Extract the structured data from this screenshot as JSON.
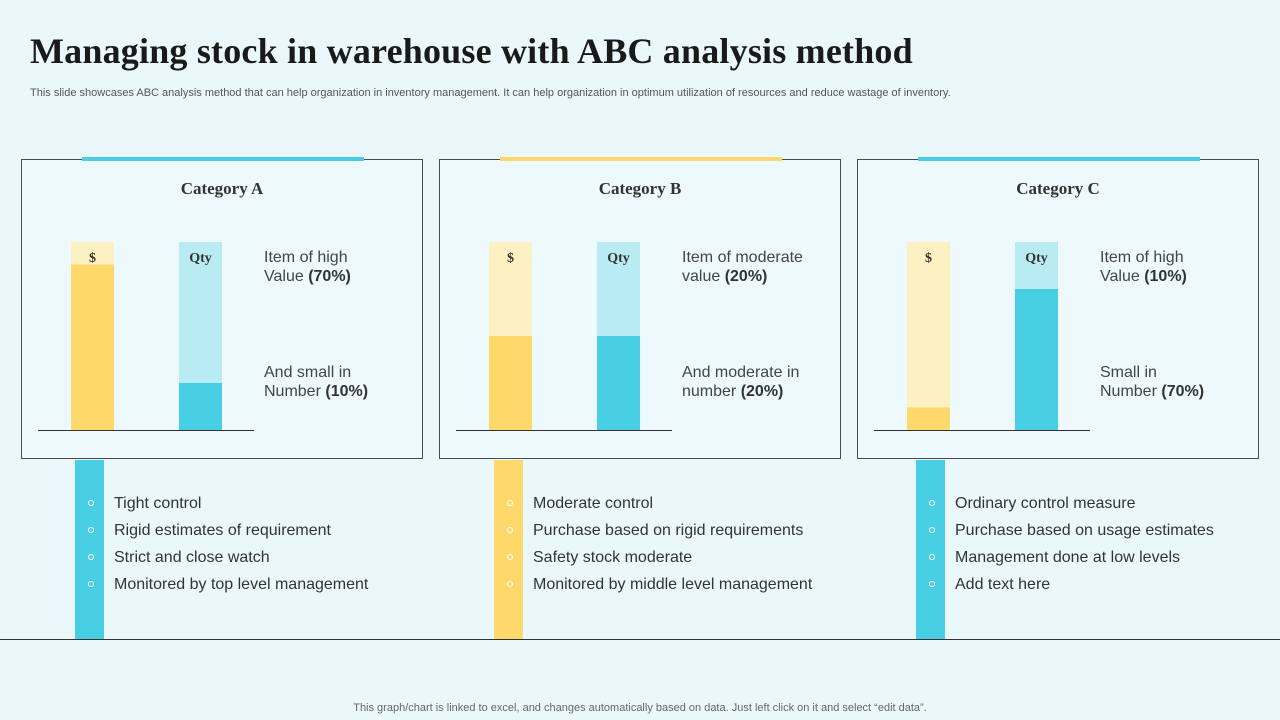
{
  "title": "Managing stock in warehouse with ABC analysis method",
  "subtitle": "This slide showcases ABC analysis method that can help organization in inventory management. It can help organization in optimum utilization of resources and reduce wastage of inventory.",
  "footer": "This graph/chart is linked to excel,  and changes automatically based on data. Just left click on it and select “edit data”.",
  "colors": {
    "dollar_fill": "#fcd96a",
    "dollar_bg": "#fdf0c2",
    "qty_fill": "#48cfe3",
    "qty_bg": "#b9ebf3",
    "accent_blue": "#48cfe3",
    "accent_yellow": "#fcd96a"
  },
  "chart_data": [
    {
      "type": "bar",
      "title": "Category A",
      "categories": [
        "$",
        "Qty"
      ],
      "values": [
        88,
        25
      ],
      "ylim": [
        0,
        100
      ],
      "accent": "blue",
      "desc_top": {
        "text": "Item  of high",
        "text2": "Value ",
        "bold": "(70%)"
      },
      "desc_bottom": {
        "text": "And small in",
        "text2": "Number ",
        "bold": "(10%)"
      },
      "bullets": [
        "Tight control",
        "Rigid estimates of requirement",
        "Strict and close watch",
        "Monitored by top level management"
      ]
    },
    {
      "type": "bar",
      "title": "Category B",
      "categories": [
        "$",
        "Qty"
      ],
      "values": [
        50,
        50
      ],
      "ylim": [
        0,
        100
      ],
      "accent": "yellow",
      "desc_top": {
        "text": "Item  of moderate",
        "text2": "value ",
        "bold": "(20%)"
      },
      "desc_bottom": {
        "text": "And moderate in",
        "text2": "number ",
        "bold": "(20%)"
      },
      "bullets": [
        "Moderate control",
        "Purchase based on rigid requirements",
        "Safety stock moderate",
        "Monitored by middle level management"
      ]
    },
    {
      "type": "bar",
      "title": "Category C",
      "categories": [
        "$",
        "Qty"
      ],
      "values": [
        12,
        75
      ],
      "ylim": [
        0,
        100
      ],
      "accent": "blue",
      "desc_top": {
        "text": "Item  of high",
        "text2": "Value ",
        "bold": "(10%)"
      },
      "desc_bottom": {
        "text": "Small in",
        "text2": "Number ",
        "bold": "(70%)"
      },
      "bullets": [
        "Ordinary control measure",
        "Purchase based on usage estimates",
        "Management done at low levels",
        "Add text here"
      ]
    }
  ]
}
